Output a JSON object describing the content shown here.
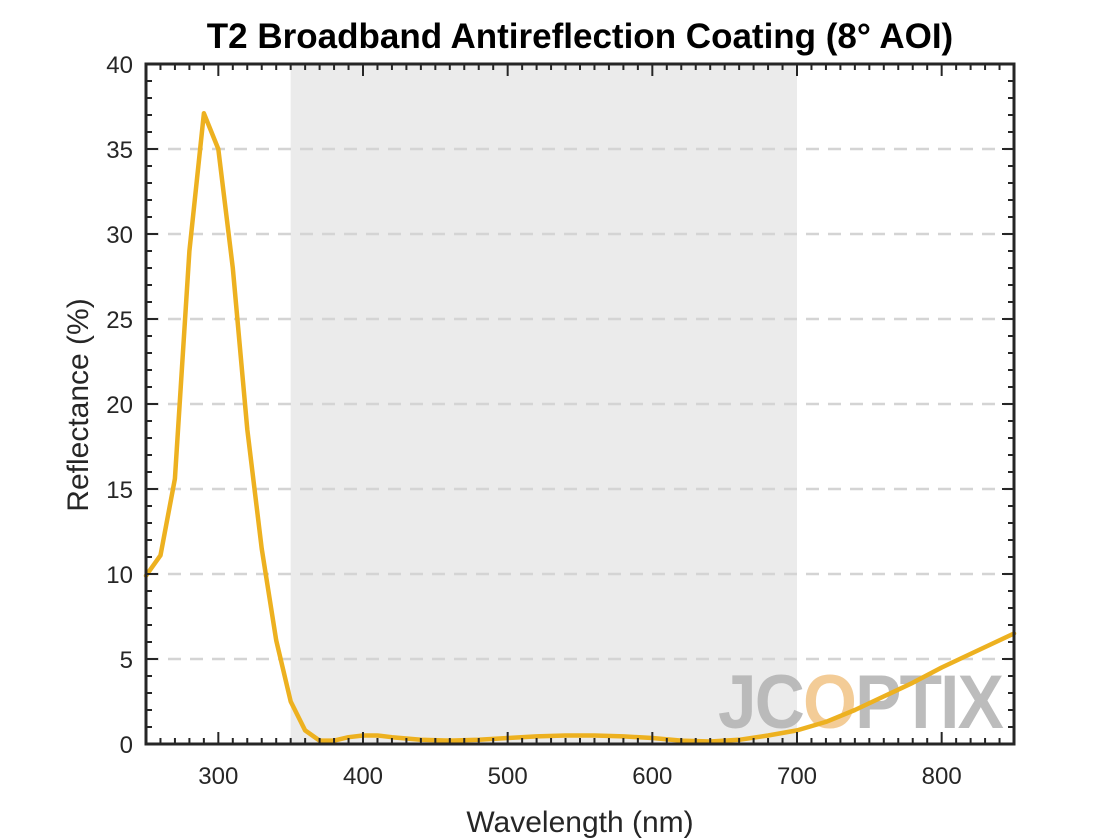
{
  "chart_data": {
    "type": "line",
    "title": "T2 Broadband Antireflection Coating (8° AOI)",
    "xlabel": "Wavelength (nm)",
    "ylabel": "Reflectance (%)",
    "xlim": [
      250,
      850
    ],
    "ylim": [
      0,
      40
    ],
    "xticks": [
      300,
      400,
      500,
      600,
      700,
      800
    ],
    "yticks": [
      0,
      5,
      10,
      15,
      20,
      25,
      30,
      35,
      40
    ],
    "grid": "horizontal dashed",
    "highlight_band": {
      "from": 350,
      "to": 700,
      "color": "#ebebeb"
    },
    "series": [
      {
        "color": "#edb120",
        "x": [
          250,
          260,
          270,
          280,
          290,
          300,
          310,
          320,
          330,
          340,
          350,
          360,
          370,
          380,
          390,
          400,
          410,
          420,
          440,
          460,
          480,
          500,
          520,
          540,
          560,
          580,
          600,
          620,
          640,
          660,
          680,
          700,
          720,
          740,
          760,
          780,
          800,
          820,
          850
        ],
        "y": [
          9.9,
          11.1,
          15.6,
          29.0,
          37.1,
          35.0,
          28.0,
          18.5,
          11.5,
          6.1,
          2.5,
          0.8,
          0.2,
          0.2,
          0.4,
          0.5,
          0.5,
          0.4,
          0.25,
          0.2,
          0.25,
          0.35,
          0.45,
          0.5,
          0.5,
          0.45,
          0.35,
          0.2,
          0.15,
          0.25,
          0.5,
          0.8,
          1.3,
          2.0,
          2.8,
          3.6,
          4.5,
          5.3,
          6.5
        ]
      }
    ]
  },
  "watermark": {
    "text": "JCOPTIX",
    "color": "#b5b5b5",
    "accent_color": "#f2c68c"
  }
}
